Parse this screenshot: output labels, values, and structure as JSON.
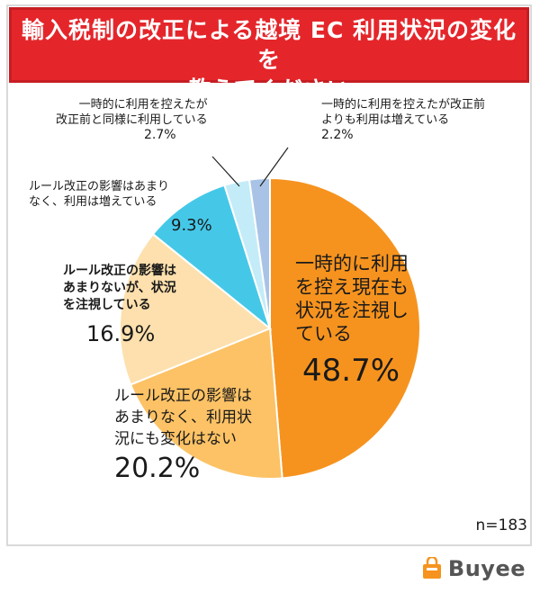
{
  "title_lines": [
    "輸入税制の改正による越境 EC 利用状況の変化を",
    "教えてください"
  ],
  "sample_size": "n=183",
  "brand": "Buyee",
  "colors": {
    "title_bg": "#e4262b",
    "slice_main": "#f6931e",
    "slice_no_change": "#fcc265",
    "slice_watch": "#fde0ad",
    "slice_increased": "#45c8e8",
    "slice_same": "#c4ecf8",
    "slice_more": "#a9c3e6"
  },
  "chart_data": {
    "type": "pie",
    "title": "輸入税制の改正による越境 EC 利用状況の変化を教えてください",
    "slices": [
      {
        "label": "一時的に利用を控え現在も状況を注視している",
        "value": 48.7,
        "display": "48.7%"
      },
      {
        "label": "ルール改正の影響はあまりなく、利用状況にも変化はない",
        "value": 20.2,
        "display": "20.2%"
      },
      {
        "label": "ルール改正の影響はあまりないが、状況を注視している",
        "value": 16.9,
        "display": "16.9%"
      },
      {
        "label": "ルール改正の影響はあまりなく、利用は増えている",
        "value": 9.3,
        "display": "9.3%"
      },
      {
        "label": "一時的に利用を控えたが改正前と同様に利用している",
        "value": 2.7,
        "display": "2.7%"
      },
      {
        "label": "一時的に利用を控えたが改正前よりも利用は増えている",
        "value": 2.2,
        "display": "2.2%"
      }
    ]
  },
  "labels": {
    "main": {
      "lines": [
        "一時的に利用",
        "を控え現在も",
        "状況を注視し",
        "ている"
      ],
      "pct": "48.7%"
    },
    "no_change": {
      "lines": [
        "ルール改正の影響は",
        "あまりなく、利用状",
        "況にも変化はない"
      ],
      "pct": "20.2%"
    },
    "watch": {
      "lines": [
        "ルール改正の影響は",
        "あまりないが、状況",
        "を注視している"
      ],
      "pct": "16.9%"
    },
    "increased": {
      "lines": [
        "ルール改正の影響はあまり",
        "なく、利用は増えている"
      ],
      "pct": "9.3%"
    },
    "same": {
      "lines": [
        "一時的に利用を控えたが",
        "改正前と同様に利用している"
      ],
      "pct": "2.7%"
    },
    "more": {
      "lines": [
        "一時的に利用を控えたが改正前",
        "よりも利用は増えている"
      ],
      "pct": "2.2%"
    }
  }
}
